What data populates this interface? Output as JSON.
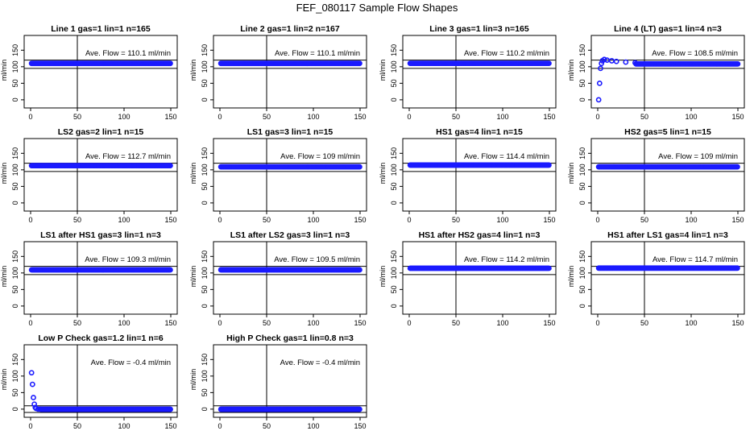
{
  "title": "FEF_080117  Sample Flow Shapes",
  "chart_data": [
    {
      "type": "scatter",
      "title": "Line 1 gas=1 lin=1 n=165",
      "ylabel": "ml/min",
      "annotation": "Ave. Flow =  110.1  ml/min",
      "ave": 110.1,
      "xlim": [
        0,
        150
      ],
      "ylim": [
        -10,
        180
      ],
      "x_ticks": [
        0,
        50,
        100,
        150
      ],
      "y_ticks": [
        0,
        50,
        100,
        150
      ],
      "ref_x": 50,
      "hlines": [
        95,
        120
      ],
      "transient": [],
      "steady": 110.1
    },
    {
      "type": "scatter",
      "title": "Line 2 gas=1 lin=2 n=167",
      "ylabel": "ml/min",
      "annotation": "Ave. Flow =  110.1  ml/min",
      "ave": 110.1,
      "xlim": [
        0,
        150
      ],
      "ylim": [
        -10,
        180
      ],
      "x_ticks": [
        0,
        50,
        100,
        150
      ],
      "y_ticks": [
        0,
        50,
        100,
        150
      ],
      "ref_x": 50,
      "hlines": [
        95,
        120
      ],
      "transient": [],
      "steady": 110.1
    },
    {
      "type": "scatter",
      "title": "Line 3 gas=1 lin=3 n=165",
      "ylabel": "ml/min",
      "annotation": "Ave. Flow =  110.2  ml/min",
      "ave": 110.2,
      "xlim": [
        0,
        150
      ],
      "ylim": [
        -10,
        180
      ],
      "x_ticks": [
        0,
        50,
        100,
        150
      ],
      "y_ticks": [
        0,
        50,
        100,
        150
      ],
      "ref_x": 50,
      "hlines": [
        95,
        120
      ],
      "transient": [],
      "steady": 110.2
    },
    {
      "type": "scatter",
      "title": "Line 4 (LT) gas=1 lin=4 n=3",
      "ylabel": "ml/min",
      "annotation": "Ave. Flow =  108.5  ml/min",
      "ave": 108.5,
      "xlim": [
        0,
        150
      ],
      "ylim": [
        -10,
        180
      ],
      "x_ticks": [
        0,
        50,
        100,
        150
      ],
      "y_ticks": [
        0,
        50,
        100,
        150
      ],
      "ref_x": 50,
      "hlines": [
        95,
        120
      ],
      "transient": [
        [
          1,
          0
        ],
        [
          2,
          50
        ],
        [
          3,
          95
        ],
        [
          4,
          110
        ],
        [
          5,
          118
        ],
        [
          7,
          122
        ],
        [
          10,
          120
        ],
        [
          15,
          118
        ],
        [
          20,
          116
        ],
        [
          30,
          114
        ],
        [
          40,
          112
        ]
      ],
      "steady": 108.5
    },
    {
      "type": "scatter",
      "title": "LS2 gas=2 lin=1 n=15",
      "ylabel": "ml/min",
      "annotation": "Ave. Flow =  112.7  ml/min",
      "ave": 112.7,
      "xlim": [
        0,
        150
      ],
      "ylim": [
        -10,
        180
      ],
      "x_ticks": [
        0,
        50,
        100,
        150
      ],
      "y_ticks": [
        0,
        50,
        100,
        150
      ],
      "ref_x": 50,
      "hlines": [
        95,
        120
      ],
      "transient": [],
      "steady": 112.7
    },
    {
      "type": "scatter",
      "title": "LS1 gas=3 lin=1 n=15",
      "ylabel": "ml/min",
      "annotation": "Ave. Flow =  109  ml/min",
      "ave": 109,
      "xlim": [
        0,
        150
      ],
      "ylim": [
        -10,
        180
      ],
      "x_ticks": [
        0,
        50,
        100,
        150
      ],
      "y_ticks": [
        0,
        50,
        100,
        150
      ],
      "ref_x": 50,
      "hlines": [
        95,
        120
      ],
      "transient": [],
      "steady": 109
    },
    {
      "type": "scatter",
      "title": "HS1 gas=4 lin=1 n=15",
      "ylabel": "ml/min",
      "annotation": "Ave. Flow =  114.4  ml/min",
      "ave": 114.4,
      "xlim": [
        0,
        150
      ],
      "ylim": [
        -10,
        180
      ],
      "x_ticks": [
        0,
        50,
        100,
        150
      ],
      "y_ticks": [
        0,
        50,
        100,
        150
      ],
      "ref_x": 50,
      "hlines": [
        95,
        120
      ],
      "transient": [],
      "steady": 114.4
    },
    {
      "type": "scatter",
      "title": "HS2 gas=5 lin=1 n=15",
      "ylabel": "ml/min",
      "annotation": "Ave. Flow =  109  ml/min",
      "ave": 109,
      "xlim": [
        0,
        150
      ],
      "ylim": [
        -10,
        180
      ],
      "x_ticks": [
        0,
        50,
        100,
        150
      ],
      "y_ticks": [
        0,
        50,
        100,
        150
      ],
      "ref_x": 50,
      "hlines": [
        95,
        120
      ],
      "transient": [],
      "steady": 109
    },
    {
      "type": "scatter",
      "title": "LS1 after HS1 gas=3 lin=1 n=3",
      "ylabel": "ml/min",
      "annotation": "Ave. Flow =  109.3  ml/min",
      "ave": 109.3,
      "xlim": [
        0,
        150
      ],
      "ylim": [
        -10,
        180
      ],
      "x_ticks": [
        0,
        50,
        100,
        150
      ],
      "y_ticks": [
        0,
        50,
        100,
        150
      ],
      "ref_x": 50,
      "hlines": [
        95,
        120
      ],
      "transient": [],
      "steady": 109.3
    },
    {
      "type": "scatter",
      "title": "LS1 after LS2 gas=3 lin=1 n=3",
      "ylabel": "ml/min",
      "annotation": "Ave. Flow =  109.5  ml/min",
      "ave": 109.5,
      "xlim": [
        0,
        150
      ],
      "ylim": [
        -10,
        180
      ],
      "x_ticks": [
        0,
        50,
        100,
        150
      ],
      "y_ticks": [
        0,
        50,
        100,
        150
      ],
      "ref_x": 50,
      "hlines": [
        95,
        120
      ],
      "transient": [],
      "steady": 109.5
    },
    {
      "type": "scatter",
      "title": "HS1 after HS2 gas=4 lin=1 n=3",
      "ylabel": "ml/min",
      "annotation": "Ave. Flow =  114.2  ml/min",
      "ave": 114.2,
      "xlim": [
        0,
        150
      ],
      "ylim": [
        -10,
        180
      ],
      "x_ticks": [
        0,
        50,
        100,
        150
      ],
      "y_ticks": [
        0,
        50,
        100,
        150
      ],
      "ref_x": 50,
      "hlines": [
        95,
        120
      ],
      "transient": [],
      "steady": 114.2
    },
    {
      "type": "scatter",
      "title": "HS1 after LS1 gas=4 lin=1 n=3",
      "ylabel": "ml/min",
      "annotation": "Ave. Flow =  114.7  ml/min",
      "ave": 114.7,
      "xlim": [
        0,
        150
      ],
      "ylim": [
        -10,
        180
      ],
      "x_ticks": [
        0,
        50,
        100,
        150
      ],
      "y_ticks": [
        0,
        50,
        100,
        150
      ],
      "ref_x": 50,
      "hlines": [
        95,
        120
      ],
      "transient": [],
      "steady": 114.7
    },
    {
      "type": "scatter",
      "title": "Low P Check gas=1.2 lin=1 n=6",
      "ylabel": "ml/min",
      "annotation": "Ave. Flow =  -0.4  ml/min",
      "ave": -0.4,
      "xlim": [
        0,
        150
      ],
      "ylim": [
        -10,
        180
      ],
      "x_ticks": [
        0,
        50,
        100,
        150
      ],
      "y_ticks": [
        0,
        50,
        100,
        150
      ],
      "ref_x": 50,
      "hlines": [
        -10,
        10
      ],
      "transient": [
        [
          1,
          110
        ],
        [
          2,
          75
        ],
        [
          3,
          35
        ],
        [
          4,
          15
        ],
        [
          5,
          5
        ],
        [
          6,
          2
        ],
        [
          8,
          0
        ],
        [
          10,
          0
        ]
      ],
      "steady": -0.4
    },
    {
      "type": "scatter",
      "title": "High P Check gas=1 lin=0.8 n=3",
      "ylabel": "ml/min",
      "annotation": "Ave. Flow =  -0.4  ml/min",
      "ave": -0.4,
      "xlim": [
        0,
        150
      ],
      "ylim": [
        -10,
        180
      ],
      "x_ticks": [
        0,
        50,
        100,
        150
      ],
      "y_ticks": [
        0,
        50,
        100,
        150
      ],
      "ref_x": 50,
      "hlines": [
        -10,
        10
      ],
      "transient": [],
      "steady": -0.4
    }
  ],
  "colors": {
    "points": "#1a1aff",
    "axes": "#000000",
    "background": "#ffffff"
  }
}
